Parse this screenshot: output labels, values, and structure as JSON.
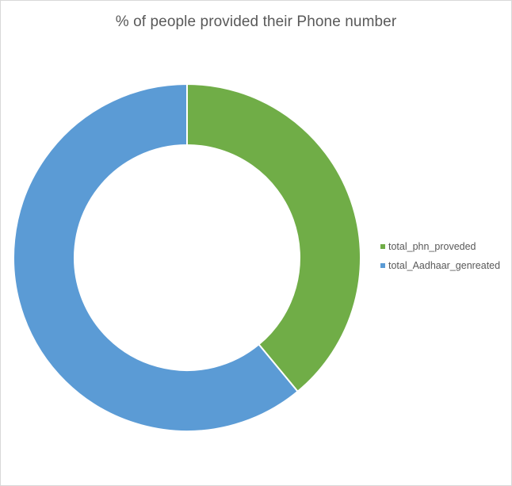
{
  "chart_data": {
    "type": "pie",
    "variant": "donut",
    "title": "% of people provided their Phone number",
    "categories": [
      "total_phn_proveded",
      "total_Aadhaar_genreated"
    ],
    "values": [
      39,
      61
    ],
    "colors": [
      "#70ad47",
      "#5b9bd5"
    ],
    "legend_position": "right"
  }
}
